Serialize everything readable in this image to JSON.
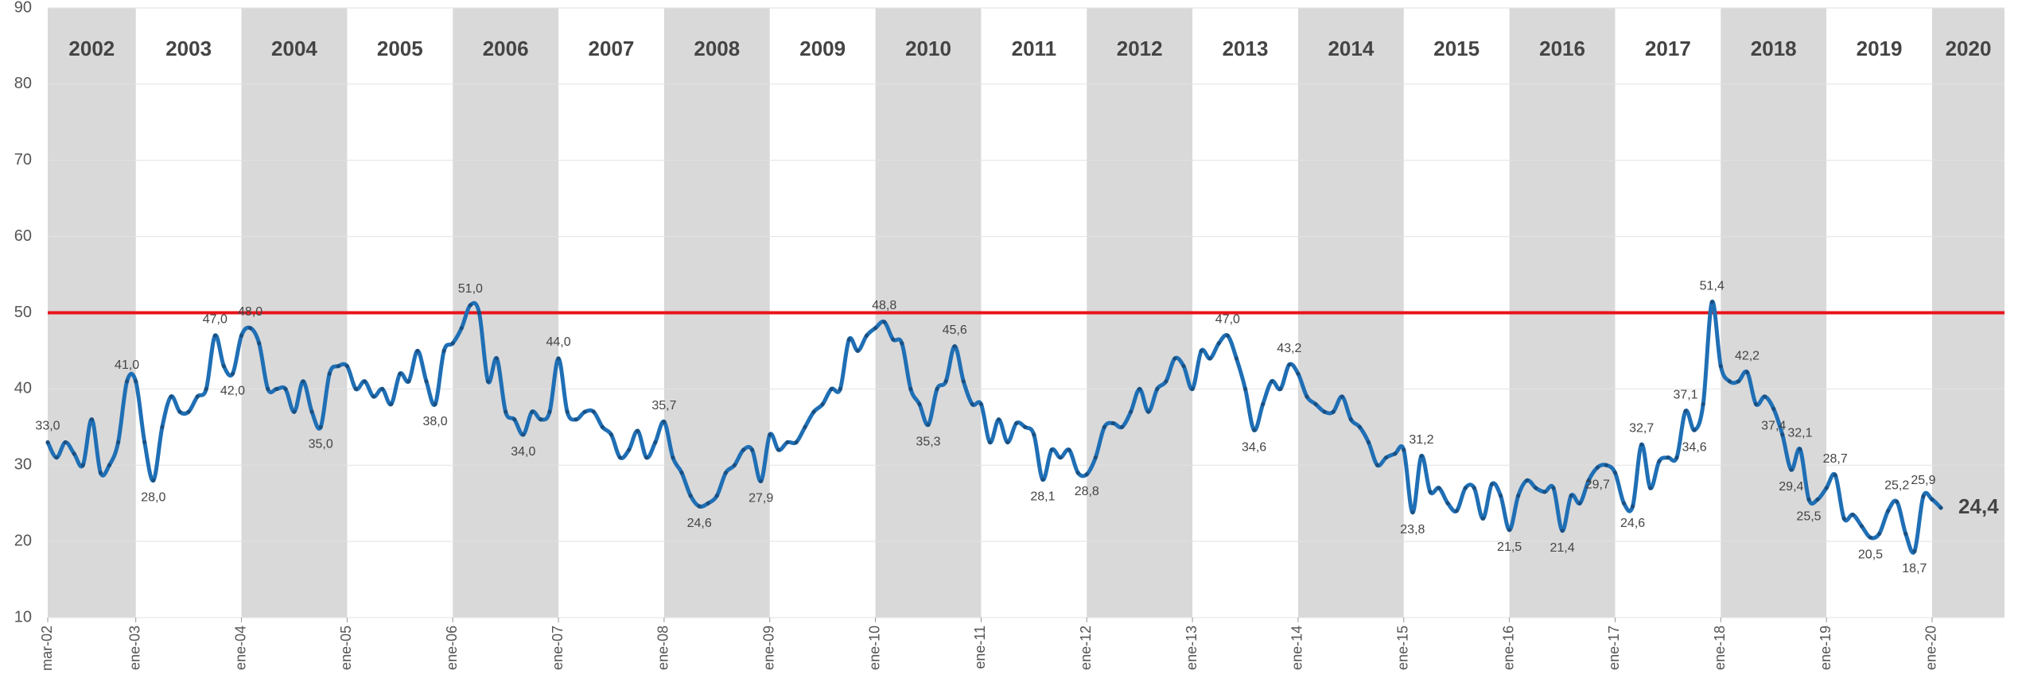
{
  "chart_data": {
    "type": "line",
    "years": [
      "2002",
      "2003",
      "2004",
      "2005",
      "2006",
      "2007",
      "2008",
      "2009",
      "2010",
      "2011",
      "2012",
      "2013",
      "2014",
      "2015",
      "2016",
      "2017",
      "2018",
      "2019",
      "2020"
    ],
    "categories": [
      "mar-02",
      null,
      null,
      null,
      null,
      null,
      null,
      null,
      null,
      null,
      "ene-03",
      null,
      null,
      null,
      null,
      null,
      null,
      null,
      null,
      null,
      null,
      null,
      "ene-04",
      null,
      null,
      null,
      null,
      null,
      null,
      null,
      null,
      null,
      null,
      null,
      "ene-05",
      null,
      null,
      null,
      null,
      null,
      null,
      null,
      null,
      null,
      null,
      null,
      "ene-06",
      null,
      null,
      null,
      null,
      null,
      null,
      null,
      null,
      null,
      null,
      null,
      "ene-07",
      null,
      null,
      null,
      null,
      null,
      null,
      null,
      null,
      null,
      null,
      null,
      "ene-08",
      null,
      null,
      null,
      null,
      null,
      null,
      null,
      null,
      null,
      null,
      null,
      "ene-09",
      null,
      null,
      null,
      null,
      null,
      null,
      null,
      null,
      null,
      null,
      null,
      "ene-10",
      null,
      null,
      null,
      null,
      null,
      null,
      null,
      null,
      null,
      null,
      null,
      "ene-11",
      null,
      null,
      null,
      null,
      null,
      null,
      null,
      null,
      null,
      null,
      null,
      "ene-12",
      null,
      null,
      null,
      null,
      null,
      null,
      null,
      null,
      null,
      null,
      null,
      "ene-13",
      null,
      null,
      null,
      null,
      null,
      null,
      null,
      null,
      null,
      null,
      null,
      "ene-14",
      null,
      null,
      null,
      null,
      null,
      null,
      null,
      null,
      null,
      null,
      null,
      "ene-15",
      null,
      null,
      null,
      null,
      null,
      null,
      null,
      null,
      null,
      null,
      null,
      "ene-16",
      null,
      null,
      null,
      null,
      null,
      null,
      null,
      null,
      null,
      null,
      null,
      "ene-17",
      null,
      null,
      null,
      null,
      null,
      null,
      null,
      null,
      null,
      null,
      null,
      "ene-18",
      null,
      null,
      null,
      null,
      null,
      null,
      null,
      null,
      null,
      null,
      null,
      "ene-19",
      null,
      null,
      null,
      null,
      null,
      null,
      null,
      null,
      null,
      null,
      null,
      "ene-20",
      null
    ],
    "values": [
      33.0,
      31,
      33,
      31.5,
      30,
      36,
      29,
      30,
      33,
      41.0,
      41,
      33,
      28.0,
      35,
      39,
      37,
      37,
      39,
      40,
      47.0,
      43,
      42.0,
      47,
      48.0,
      46,
      40,
      40,
      40,
      37,
      41,
      37,
      35.0,
      42,
      43,
      43,
      40,
      41,
      39,
      40,
      38,
      42,
      41,
      45,
      41,
      38.0,
      45,
      46,
      48,
      51.0,
      50,
      41,
      44,
      37,
      36,
      34.0,
      37,
      36,
      37,
      44.0,
      37,
      36,
      37,
      37,
      35,
      34,
      31,
      32,
      34.5,
      31,
      33,
      35.7,
      31,
      29,
      26,
      24.6,
      25,
      26,
      29,
      30,
      32,
      32,
      27.9,
      34,
      32,
      33,
      33,
      35,
      37,
      38,
      40,
      40,
      46.5,
      45,
      47,
      48,
      48.8,
      46.5,
      46,
      40,
      38,
      35.3,
      40,
      41,
      45.6,
      41,
      38,
      38,
      33,
      36,
      33,
      35.5,
      35,
      34,
      28.1,
      32,
      31,
      32,
      29,
      28.8,
      31,
      35,
      35.5,
      35,
      37,
      40,
      37,
      40,
      41,
      44,
      43,
      40,
      45,
      44,
      46,
      47.0,
      44,
      40,
      34.6,
      38,
      41,
      40,
      43.2,
      42,
      39,
      38,
      37,
      37,
      39,
      36,
      35,
      33,
      30,
      31,
      31.5,
      32,
      23.8,
      31.2,
      26.5,
      27,
      25,
      24,
      27,
      27,
      23,
      27.5,
      26,
      21.5,
      26,
      28,
      27,
      26.5,
      27,
      21.4,
      26,
      25,
      28,
      29.7,
      30,
      29,
      25,
      24.6,
      32.7,
      27,
      30.5,
      31,
      31,
      37.1,
      34.6,
      38,
      51.4,
      43,
      41,
      41,
      42.2,
      38,
      39,
      37.4,
      34,
      29.4,
      32.1,
      25.5,
      25.5,
      27,
      28.7,
      23,
      23.5,
      22,
      20.5,
      21,
      24,
      25.2,
      21,
      18.7,
      25.9,
      25.5,
      24.4
    ],
    "value_labels": [
      "33,0",
      null,
      null,
      null,
      null,
      null,
      null,
      null,
      null,
      "41,0",
      null,
      null,
      "28,0",
      null,
      null,
      null,
      null,
      null,
      null,
      "47,0",
      null,
      "42,0",
      null,
      "48,0",
      null,
      null,
      null,
      null,
      null,
      null,
      null,
      "35,0",
      null,
      null,
      null,
      null,
      null,
      null,
      null,
      null,
      null,
      null,
      null,
      null,
      "38,0",
      null,
      null,
      null,
      "51,0",
      null,
      null,
      null,
      null,
      null,
      "34,0",
      null,
      null,
      null,
      "44,0",
      null,
      null,
      null,
      null,
      null,
      null,
      null,
      null,
      null,
      null,
      null,
      "35,7",
      null,
      null,
      null,
      "24,6",
      null,
      null,
      null,
      null,
      null,
      null,
      "27,9",
      null,
      null,
      null,
      null,
      null,
      null,
      null,
      null,
      null,
      null,
      null,
      null,
      null,
      "48,8",
      null,
      null,
      null,
      null,
      "35,3",
      null,
      null,
      "45,6",
      null,
      null,
      null,
      null,
      null,
      null,
      null,
      null,
      null,
      "28,1",
      null,
      null,
      null,
      null,
      "28,8",
      null,
      null,
      null,
      null,
      null,
      null,
      null,
      null,
      null,
      null,
      null,
      null,
      null,
      null,
      null,
      "47,0",
      null,
      null,
      "34,6",
      null,
      null,
      null,
      "43,2",
      null,
      null,
      null,
      null,
      null,
      null,
      null,
      null,
      null,
      null,
      null,
      null,
      null,
      "23,8",
      "31,2",
      null,
      null,
      null,
      null,
      null,
      null,
      null,
      null,
      null,
      "21,5",
      null,
      null,
      null,
      null,
      null,
      "21,4",
      null,
      null,
      null,
      "29,7",
      null,
      null,
      null,
      "24,6",
      "32,7",
      null,
      null,
      null,
      null,
      "37,1",
      "34,6",
      null,
      "51,4",
      null,
      null,
      null,
      "42,2",
      null,
      null,
      "37,4",
      null,
      "29,4",
      "32,1",
      "25,5",
      null,
      null,
      "28,7",
      null,
      null,
      null,
      "20,5",
      null,
      null,
      "25,2",
      null,
      "18,7",
      "25,9",
      null,
      "24,4"
    ],
    "color": "#1f6fb5",
    "reference_line": {
      "value": 50,
      "color": "#e8141b"
    },
    "ylim": [
      10,
      90
    ],
    "yticks": [
      10,
      20,
      30,
      40,
      50,
      60,
      70,
      80,
      90
    ],
    "grid": true
  }
}
